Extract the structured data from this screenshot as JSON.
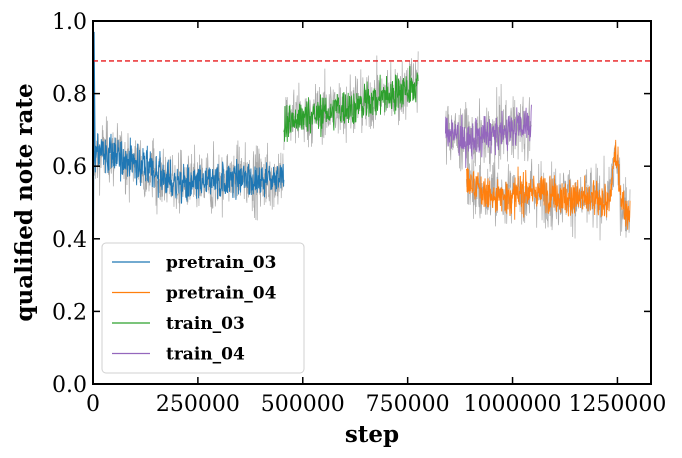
{
  "chart_data": {
    "type": "line",
    "title": "",
    "xlabel": "step",
    "ylabel": "qualified note rate",
    "xlim": [
      0,
      1330000
    ],
    "ylim": [
      0.0,
      1.0
    ],
    "x_ticks": [
      0,
      250000,
      500000,
      750000,
      1000000,
      1250000
    ],
    "x_tick_labels": [
      "0",
      "250000",
      "500000",
      "750000",
      "1000000",
      "1250000"
    ],
    "y_ticks": [
      0.0,
      0.2,
      0.4,
      0.6,
      0.8,
      1.0
    ],
    "y_tick_labels": [
      "0.0",
      "0.2",
      "0.4",
      "0.6",
      "0.8",
      "1.0"
    ],
    "reference_line": {
      "y": 0.89,
      "color": "#e8191c",
      "style": "dashed"
    },
    "raw_color": "#aaaaaa",
    "legend_location": "lower-left",
    "series": [
      {
        "name": "pretrain_03",
        "color": "#1f77b4",
        "x": [
          0,
          20000,
          50000,
          100000,
          150000,
          200000,
          250000,
          300000,
          350000,
          400000,
          430000,
          455000
        ],
        "values": [
          0.62,
          0.64,
          0.63,
          0.61,
          0.58,
          0.55,
          0.55,
          0.56,
          0.57,
          0.56,
          0.57,
          0.57
        ]
      },
      {
        "name": "pretrain_04",
        "color": "#ff7f0e",
        "x": [
          890000,
          920000,
          950000,
          1000000,
          1050000,
          1100000,
          1150000,
          1200000,
          1230000,
          1245000,
          1260000,
          1270000,
          1280000
        ],
        "values": [
          0.56,
          0.53,
          0.52,
          0.52,
          0.53,
          0.52,
          0.51,
          0.51,
          0.5,
          0.64,
          0.5,
          0.48,
          0.47
        ]
      },
      {
        "name": "train_03",
        "color": "#2ca02c",
        "x": [
          455000,
          480000,
          520000,
          560000,
          600000,
          640000,
          680000,
          720000,
          760000,
          775000
        ],
        "values": [
          0.72,
          0.73,
          0.74,
          0.75,
          0.76,
          0.77,
          0.79,
          0.8,
          0.82,
          0.83
        ]
      },
      {
        "name": "train_04",
        "color": "#9467bd",
        "x": [
          840000,
          870000,
          900000,
          930000,
          960000,
          990000,
          1020000,
          1045000
        ],
        "values": [
          0.7,
          0.68,
          0.67,
          0.68,
          0.69,
          0.7,
          0.71,
          0.72
        ]
      }
    ]
  }
}
